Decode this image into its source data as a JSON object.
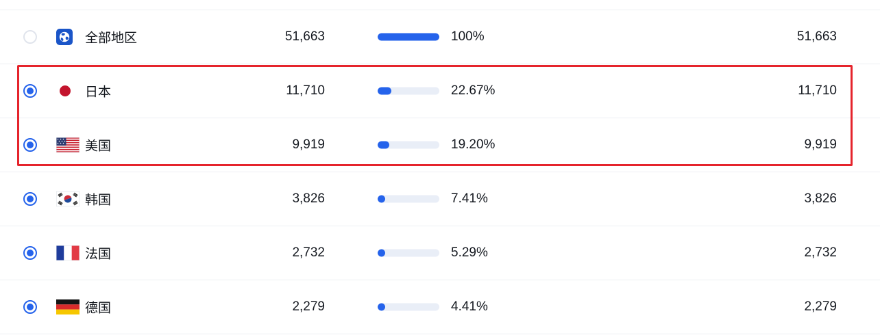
{
  "colors": {
    "accent_blue": "#2563eb",
    "bar_track": "#e9eef7",
    "highlight_red": "#e5242c",
    "row_divider": "#edeff3",
    "text": "#14181f"
  },
  "table": {
    "rows": [
      {
        "region": "全部地区",
        "flag": "globe",
        "value": "51,663",
        "percent_label": "100%",
        "percent": 100,
        "value_right": "51,663",
        "selected": false
      },
      {
        "region": "日本",
        "flag": "jp",
        "value": "11,710",
        "percent_label": "22.67%",
        "percent": 22.67,
        "value_right": "11,710",
        "selected": true
      },
      {
        "region": "美国",
        "flag": "us",
        "value": "9,919",
        "percent_label": "19.20%",
        "percent": 19.2,
        "value_right": "9,919",
        "selected": true
      },
      {
        "region": "韩国",
        "flag": "kr",
        "value": "3,826",
        "percent_label": "7.41%",
        "percent": 7.41,
        "value_right": "3,826",
        "selected": true
      },
      {
        "region": "法国",
        "flag": "fr",
        "value": "2,732",
        "percent_label": "5.29%",
        "percent": 5.29,
        "value_right": "2,732",
        "selected": true
      },
      {
        "region": "德国",
        "flag": "de",
        "value": "2,279",
        "percent_label": "4.41%",
        "percent": 4.41,
        "value_right": "2,279",
        "selected": true
      }
    ],
    "highlighted_row_indexes": [
      1,
      2
    ]
  }
}
